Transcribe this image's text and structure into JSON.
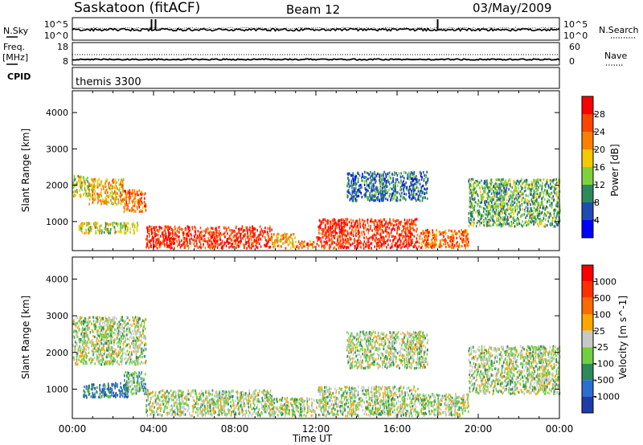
{
  "header": {
    "station": "Saskatoon (fitACF)",
    "beam": "Beam 12",
    "date": "03/May/2009"
  },
  "strips": {
    "nsky": {
      "label": "N.Sky",
      "left_ticks": [
        "10^5",
        "10^0"
      ],
      "right_ticks": [
        "10^5",
        "10^0"
      ],
      "right_label": "N.Search"
    },
    "freq": {
      "label_line1": "Freq.",
      "label_line2": "[MHz]",
      "left_ticks": [
        "18",
        "8"
      ],
      "right_ticks": [
        "60",
        "0"
      ],
      "right_label": "Nave"
    },
    "cpid": {
      "label": "CPID",
      "value": "themis 3300"
    }
  },
  "chart_data": [
    {
      "type": "heatmap",
      "quantity": "Power",
      "ylabel": "Slant Range [km]",
      "ylim": [
        200,
        4600
      ],
      "yticks": [
        1000,
        2000,
        3000,
        4000
      ],
      "xlim_hours": [
        0,
        24
      ],
      "colorbar": {
        "label": "Power [dB]",
        "ticks": [
          "4",
          "8",
          "12",
          "16",
          "20",
          "24",
          "28"
        ],
        "colors": [
          "#0000ff",
          "#1e4cb3",
          "#2d8a5a",
          "#7fd23c",
          "#f5c800",
          "#ff8000",
          "#ff4500",
          "#ff0000"
        ]
      },
      "regions": [
        {
          "t": [
            0.0,
            0.8
          ],
          "r": [
            1700,
            2300
          ],
          "level": 4
        },
        {
          "t": [
            0.8,
            2.5
          ],
          "r": [
            1500,
            2200
          ],
          "level": 5
        },
        {
          "t": [
            2.5,
            3.6
          ],
          "r": [
            1300,
            1900
          ],
          "level": 6
        },
        {
          "t": [
            0.3,
            3.2
          ],
          "r": [
            700,
            1000
          ],
          "level": 4
        },
        {
          "t": [
            3.6,
            9.8
          ],
          "r": [
            300,
            900
          ],
          "level": 7
        },
        {
          "t": [
            9.8,
            11.0
          ],
          "r": [
            300,
            700
          ],
          "level": 5
        },
        {
          "t": [
            11.0,
            12.0
          ],
          "r": [
            300,
            500
          ],
          "level": 6
        },
        {
          "t": [
            12.0,
            17.0
          ],
          "r": [
            300,
            1100
          ],
          "level": 7
        },
        {
          "t": [
            17.0,
            19.5
          ],
          "r": [
            300,
            800
          ],
          "level": 6
        },
        {
          "t": [
            19.5,
            24.0
          ],
          "r": [
            900,
            2200
          ],
          "level": 3
        },
        {
          "t": [
            13.5,
            17.5
          ],
          "r": [
            1600,
            2400
          ],
          "level": 2
        }
      ]
    },
    {
      "type": "heatmap",
      "quantity": "Velocity",
      "ylabel": "Slant Range [km]",
      "ylim": [
        200,
        4600
      ],
      "yticks": [
        1000,
        2000,
        3000,
        4000
      ],
      "xlim_hours": [
        0,
        24
      ],
      "xticks": [
        "00:00",
        "04:00",
        "08:00",
        "12:00",
        "16:00",
        "20:00",
        "00:00"
      ],
      "xlabel": "Time UT",
      "colorbar": {
        "label": "Velocity [m s^-1]",
        "ticks": [
          "1000",
          "500",
          "100",
          "25",
          "-25",
          "-100",
          "-500",
          "-1000"
        ],
        "colors": [
          "#1e3caa",
          "#2a6fd0",
          "#2d8a5a",
          "#6fd040",
          "#c8c8c8",
          "#ffa500",
          "#ff6a00",
          "#ff3000",
          "#ff0000"
        ]
      },
      "regions": [
        {
          "t": [
            0.0,
            3.6
          ],
          "r": [
            1700,
            3000
          ],
          "level": 4
        },
        {
          "t": [
            0.5,
            2.8
          ],
          "r": [
            800,
            1200
          ],
          "level": 2
        },
        {
          "t": [
            2.5,
            3.6
          ],
          "r": [
            900,
            1500
          ],
          "level": 3
        },
        {
          "t": [
            3.6,
            9.8
          ],
          "r": [
            300,
            1000
          ],
          "level": 4
        },
        {
          "t": [
            9.8,
            12.0
          ],
          "r": [
            300,
            800
          ],
          "level": 4
        },
        {
          "t": [
            12.0,
            17.0
          ],
          "r": [
            300,
            1100
          ],
          "level": 4
        },
        {
          "t": [
            17.0,
            19.5
          ],
          "r": [
            300,
            900
          ],
          "level": 4
        },
        {
          "t": [
            19.5,
            24.0
          ],
          "r": [
            900,
            2200
          ],
          "level": 4
        },
        {
          "t": [
            13.5,
            17.5
          ],
          "r": [
            1600,
            2600
          ],
          "level": 4
        }
      ]
    }
  ]
}
